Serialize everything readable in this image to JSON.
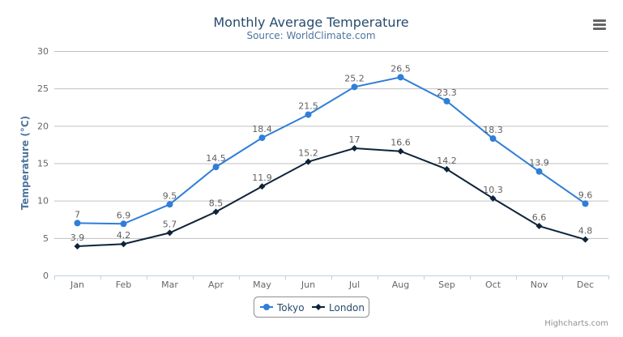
{
  "chart_data": {
    "type": "line",
    "title": "Monthly Average Temperature",
    "subtitle": "Source: WorldClimate.com",
    "ylabel": "Temperature (°C)",
    "xlabel": "",
    "ylim": [
      0,
      30
    ],
    "yticks": [
      0,
      5,
      10,
      15,
      20,
      25,
      30
    ],
    "grid": true,
    "legend_placement": "bottom-center",
    "categories": [
      "Jan",
      "Feb",
      "Mar",
      "Apr",
      "May",
      "Jun",
      "Jul",
      "Aug",
      "Sep",
      "Oct",
      "Nov",
      "Dec"
    ],
    "series": [
      {
        "name": "Tokyo",
        "color": "#2f7ed8",
        "marker": "circle",
        "values": [
          7,
          6.9,
          9.5,
          14.5,
          18.4,
          21.5,
          25.2,
          26.5,
          23.3,
          18.3,
          13.9,
          9.6
        ]
      },
      {
        "name": "London",
        "color": "#0d233a",
        "marker": "diamond",
        "values": [
          3.9,
          4.2,
          5.7,
          8.5,
          11.9,
          15.2,
          17,
          16.6,
          14.2,
          10.3,
          6.6,
          4.8
        ]
      }
    ],
    "data_labels": true
  },
  "credits": "Highcharts.com",
  "menu_icon": "hamburger-menu-icon",
  "colors": {
    "title": "#274b6d",
    "subtitle": "#4d759e",
    "grid": "#c0c0c0",
    "axis": "#c0d0e0"
  }
}
